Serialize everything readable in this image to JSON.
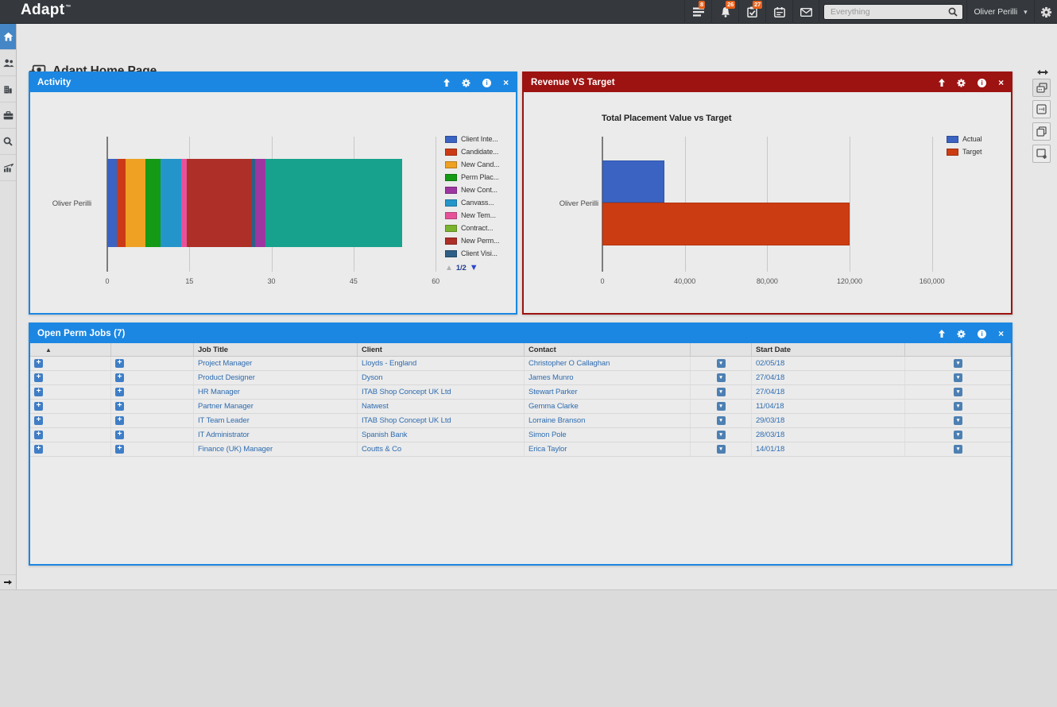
{
  "topbar": {
    "logo": "Adapt",
    "trademark": "™",
    "icons": [
      {
        "name": "menu-list",
        "badge": "8"
      },
      {
        "name": "notifications-bell",
        "badge": "26"
      },
      {
        "name": "tasks-clipboard",
        "badge": "27"
      },
      {
        "name": "calendar",
        "badge": ""
      },
      {
        "name": "mail-envelope",
        "badge": ""
      }
    ],
    "search_placeholder": "Everything",
    "user_name": "Oliver Perilli"
  },
  "sidebar": {
    "items": [
      "home",
      "contacts",
      "companies",
      "placements",
      "search",
      "analytics"
    ],
    "active": "home"
  },
  "right_rail": {
    "items": [
      "resize-horizontal",
      "stacked-windows",
      "widget-box",
      "duplicate-layout",
      "window-settings"
    ]
  },
  "page": {
    "title": "Adapt Home Page"
  },
  "widget_chrome": {
    "icons": [
      "collapse",
      "settings",
      "info",
      "close"
    ]
  },
  "widgets": {
    "activity": {
      "title": "Activity",
      "accent": "#1b87e2"
    },
    "revenue": {
      "title": "Revenue VS Target",
      "accent": "#9c1311"
    },
    "jobs": {
      "title": "Open Perm Jobs  (7)",
      "accent": "#1b87e2",
      "columns": [
        "Job Title",
        "Client",
        "Contact",
        "Start Date"
      ],
      "rows": [
        {
          "job_title": "Project Manager",
          "client": "Lloyds - England",
          "contact": "Christopher O Callaghan",
          "start_date": "02/05/18"
        },
        {
          "job_title": "Product Designer",
          "client": "Dyson",
          "contact": "James Munro",
          "start_date": "27/04/18"
        },
        {
          "job_title": "HR Manager",
          "client": "ITAB Shop Concept UK Ltd",
          "contact": "Stewart Parker",
          "start_date": "27/04/18"
        },
        {
          "job_title": "Partner Manager",
          "client": "Natwest",
          "contact": "Gemma Clarke",
          "start_date": "11/04/18"
        },
        {
          "job_title": "IT Team Leader",
          "client": "ITAB Shop Concept UK Ltd",
          "contact": "Lorraine Branson",
          "start_date": "29/03/18"
        },
        {
          "job_title": "IT Administrator",
          "client": "Spanish Bank",
          "contact": "Simon Pole",
          "start_date": "28/03/18"
        },
        {
          "job_title": "Finance (UK) Manager",
          "client": "Coutts & Co",
          "contact": "Erica Taylor",
          "start_date": "14/01/18"
        }
      ]
    }
  },
  "chart_data": [
    {
      "id": "activity",
      "type": "bar",
      "orientation": "horizontal",
      "stacked": true,
      "categories": [
        "Oliver Perilli"
      ],
      "segments": [
        {
          "label": "Client Inte...",
          "color": "#3a63c2",
          "value": 1.7
        },
        {
          "label": "Candidate...",
          "color": "#cb3a17",
          "value": 1.7
        },
        {
          "label": "New Cand...",
          "color": "#eea123",
          "value": 3.6
        },
        {
          "label": "Perm Plac...",
          "color": "#149a14",
          "value": 2.7
        },
        {
          "label": "Canvass...",
          "color": "#2495cb",
          "value": 3.8
        },
        {
          "label": "New Tem...",
          "color": "#e6529a",
          "value": 1.0
        },
        {
          "label": "New Perm...",
          "color": "#ad2f27",
          "value": 11.8
        },
        {
          "label": "Client Visi...",
          "color": "#2e5f86",
          "value": 0.7
        },
        {
          "label": "New Cont...",
          "color": "#9d36a0",
          "value": 1.9
        },
        {
          "label": "",
          "color": "#17a28d",
          "value": 25.0
        }
      ],
      "legend": [
        {
          "label": "Client Inte...",
          "color": "#3a63c2"
        },
        {
          "label": "Candidate...",
          "color": "#cb3a17"
        },
        {
          "label": "New Cand...",
          "color": "#eea123"
        },
        {
          "label": "Perm Plac...",
          "color": "#149a14"
        },
        {
          "label": "New Cont...",
          "color": "#9d36a0"
        },
        {
          "label": "Canvass...",
          "color": "#2495cb"
        },
        {
          "label": "New Tem...",
          "color": "#e6529a"
        },
        {
          "label": "Contract...",
          "color": "#7ab32e"
        },
        {
          "label": "New Perm...",
          "color": "#ad2f27"
        },
        {
          "label": "Client Visi...",
          "color": "#2e5f86"
        }
      ],
      "xticks": [
        0,
        15,
        30,
        45,
        60
      ],
      "xtick_labels": [
        "0",
        "15",
        "30",
        "45",
        "60"
      ],
      "xlim": [
        0,
        61
      ],
      "grid": true,
      "legend_position": "right",
      "legend_pagination": "1/2"
    },
    {
      "id": "revenue",
      "type": "bar",
      "orientation": "horizontal",
      "title": "Total Placement Value vs Target",
      "categories": [
        "Oliver Perilli"
      ],
      "series": [
        {
          "name": "Actual",
          "color": "#3a63c2",
          "values": [
            30000
          ]
        },
        {
          "name": "Target",
          "color": "#cc3c12",
          "values": [
            120000
          ]
        }
      ],
      "xticks": [
        0,
        40000,
        80000,
        120000,
        160000
      ],
      "xtick_labels": [
        "0",
        "40,000",
        "80,000",
        "120,000",
        "160,000"
      ],
      "xlim": [
        0,
        186000
      ],
      "grid": true,
      "legend_position": "top-right"
    }
  ]
}
